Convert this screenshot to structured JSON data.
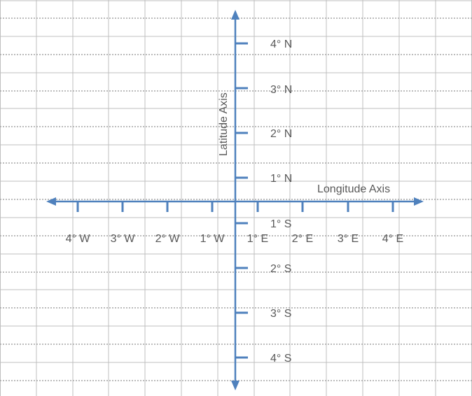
{
  "axes": {
    "x_title": "Longitude Axis",
    "y_title": "Latitude Axis"
  },
  "x_ticks": [
    "4° W",
    "3° W",
    "2° W",
    "1° W",
    "1° E",
    "2° E",
    "3° E",
    "4° E"
  ],
  "y_ticks": [
    "4° N",
    "3° N",
    "2° N",
    "1° N",
    "1° S",
    "2° S",
    "3° S",
    "4° S"
  ],
  "colors": {
    "axis": "#4f81bd",
    "text": "#595959",
    "grid_vertical": "#bfbfbf",
    "grid_horizontal": "#a6a6a6"
  }
}
